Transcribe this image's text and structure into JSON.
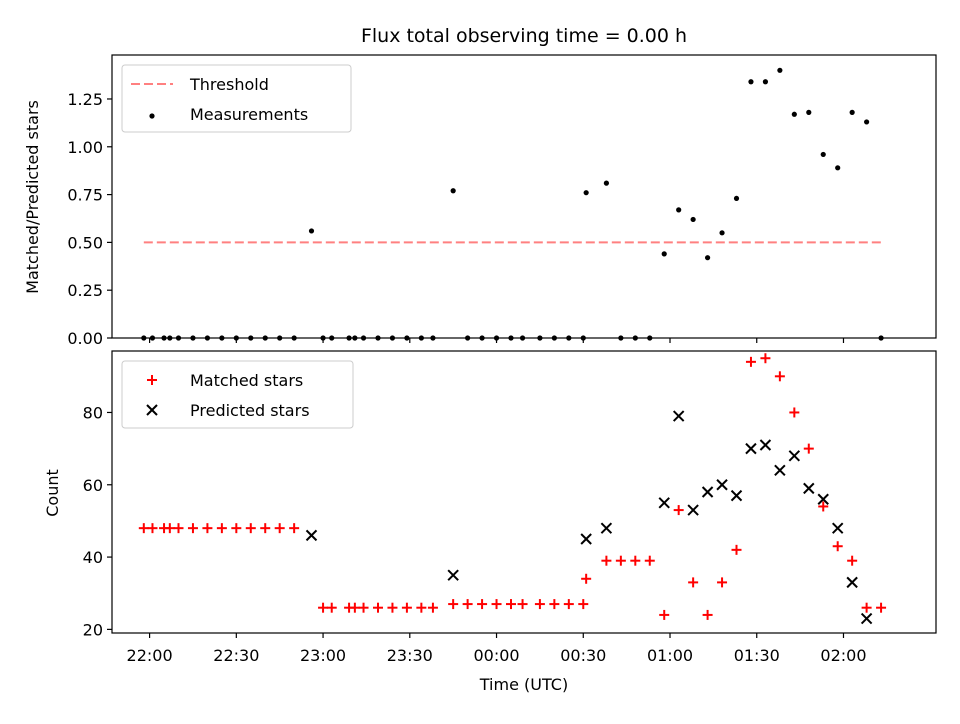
{
  "figure": {
    "title": "Flux total observing time = 0.00 h",
    "xlabel": "Time (UTC)",
    "x_tick_labels": [
      "22:00",
      "22:30",
      "23:00",
      "23:30",
      "00:00",
      "00:30",
      "01:00",
      "01:30",
      "02:00"
    ]
  },
  "chart_data": [
    {
      "type": "scatter",
      "panel": "top",
      "title": "Flux total observing time = 0.00 h",
      "xlabel": "",
      "ylabel": "Matched/Predicted stars",
      "xlim": [
        "21:47",
        "02:32"
      ],
      "ylim": [
        0,
        1.48
      ],
      "y_ticks": [
        0.0,
        0.25,
        0.5,
        0.75,
        1.0,
        1.25
      ],
      "y_tick_labels": [
        "0.00",
        "0.25",
        "0.50",
        "0.75",
        "1.00",
        "1.25"
      ],
      "legend": {
        "placement": "top-left",
        "entries": [
          "Threshold",
          "Measurements"
        ]
      },
      "series": [
        {
          "name": "Threshold",
          "style": "dashed-line",
          "color": "#ff8080",
          "x": [
            "21:58",
            "02:13"
          ],
          "y": [
            0.5,
            0.5
          ]
        },
        {
          "name": "Measurements",
          "style": "dot",
          "color": "#000000",
          "x": [
            "21:58",
            "22:01",
            "22:05",
            "22:07",
            "22:10",
            "22:15",
            "22:20",
            "22:25",
            "22:30",
            "22:35",
            "22:40",
            "22:45",
            "22:50",
            "22:56",
            "23:00",
            "23:03",
            "23:09",
            "23:11",
            "23:14",
            "23:19",
            "23:24",
            "23:29",
            "23:34",
            "23:38",
            "23:45",
            "23:50",
            "23:55",
            "24:00",
            "24:05",
            "24:09",
            "24:15",
            "24:20",
            "24:25",
            "24:30",
            "24:31",
            "24:38",
            "24:43",
            "24:48",
            "24:53",
            "24:58",
            "25:03",
            "25:08",
            "25:13",
            "25:18",
            "25:23",
            "25:28",
            "25:33",
            "25:38",
            "25:43",
            "25:48",
            "25:53",
            "25:58",
            "26:03",
            "26:08",
            "26:13"
          ],
          "y": [
            0,
            0,
            0,
            0,
            0,
            0,
            0,
            0,
            0,
            0,
            0,
            0,
            0,
            0.56,
            0,
            0,
            0,
            0,
            0,
            0,
            0,
            0,
            0,
            0,
            0.77,
            0,
            0,
            0,
            0,
            0,
            0,
            0,
            0,
            0,
            0.76,
            0.81,
            0,
            0,
            0,
            0.44,
            0.67,
            0.62,
            0.42,
            0.55,
            0.73,
            1.34,
            1.34,
            1.4,
            1.17,
            1.18,
            0.96,
            0.89,
            1.18,
            1.13,
            0
          ]
        }
      ]
    },
    {
      "type": "scatter",
      "panel": "bottom",
      "xlabel": "Time (UTC)",
      "ylabel": "Count",
      "xlim": [
        "21:47",
        "02:32"
      ],
      "ylim": [
        19,
        97
      ],
      "y_ticks": [
        20,
        40,
        60,
        80
      ],
      "y_tick_labels": [
        "20",
        "40",
        "60",
        "80"
      ],
      "x_tick_labels": [
        "22:00",
        "22:30",
        "23:00",
        "23:30",
        "00:00",
        "00:30",
        "01:00",
        "01:30",
        "02:00"
      ],
      "legend": {
        "placement": "top-left",
        "entries": [
          "Matched stars",
          "Predicted stars"
        ]
      },
      "series": [
        {
          "name": "Matched stars",
          "marker": "plus",
          "color": "#ff0000",
          "x": [
            "21:58",
            "22:01",
            "22:05",
            "22:07",
            "22:10",
            "22:15",
            "22:20",
            "22:25",
            "22:30",
            "22:35",
            "22:40",
            "22:45",
            "22:50",
            "23:00",
            "23:03",
            "23:09",
            "23:11",
            "23:14",
            "23:19",
            "23:24",
            "23:29",
            "23:34",
            "23:38",
            "23:45",
            "23:50",
            "23:55",
            "24:00",
            "24:05",
            "24:09",
            "24:15",
            "24:20",
            "24:25",
            "24:30",
            "24:31",
            "24:38",
            "24:43",
            "24:48",
            "24:53",
            "24:58",
            "25:03",
            "25:08",
            "25:13",
            "25:18",
            "25:23",
            "25:28",
            "25:33",
            "25:38",
            "25:43",
            "25:48",
            "25:53",
            "25:58",
            "26:03",
            "26:08",
            "26:13"
          ],
          "y": [
            48,
            48,
            48,
            48,
            48,
            48,
            48,
            48,
            48,
            48,
            48,
            48,
            48,
            26,
            26,
            26,
            26,
            26,
            26,
            26,
            26,
            26,
            26,
            27,
            27,
            27,
            27,
            27,
            27,
            27,
            27,
            27,
            27,
            34,
            39,
            39,
            39,
            39,
            24,
            53,
            33,
            24,
            33,
            42,
            94,
            95,
            90,
            80,
            70,
            54,
            43,
            39,
            26,
            26
          ]
        },
        {
          "name": "Predicted stars",
          "marker": "x",
          "color": "#000000",
          "x": [
            "22:56",
            "23:45",
            "24:31",
            "24:38",
            "24:58",
            "25:03",
            "25:08",
            "25:13",
            "25:18",
            "25:23",
            "25:28",
            "25:33",
            "25:38",
            "25:43",
            "25:48",
            "25:53",
            "25:58",
            "26:03",
            "26:08"
          ],
          "y": [
            46,
            35,
            45,
            48,
            55,
            79,
            53,
            58,
            60,
            57,
            70,
            71,
            64,
            68,
            59,
            56,
            48,
            33,
            23
          ]
        }
      ]
    }
  ]
}
